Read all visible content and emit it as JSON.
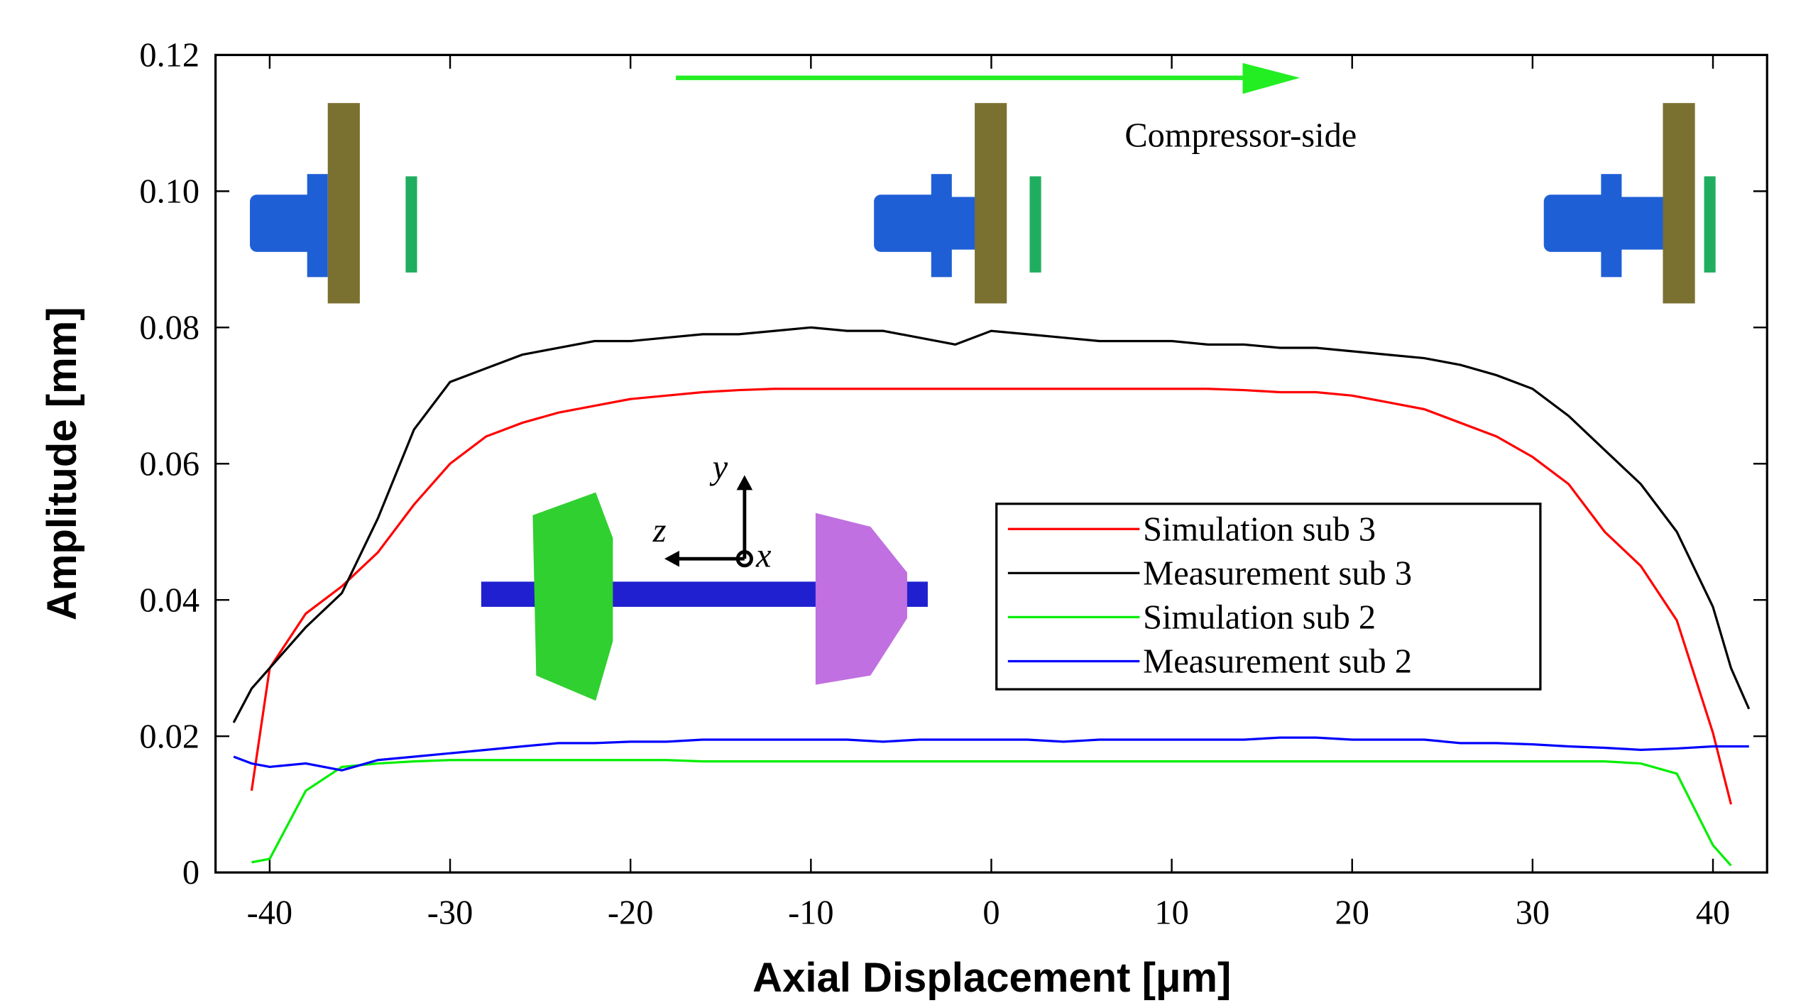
{
  "chart_data": {
    "type": "line",
    "xlabel": "Axial Displacement [μm]",
    "ylabel": "Amplitude [mm]",
    "annotations": [
      "Compressor-side",
      "y",
      "z",
      "x"
    ],
    "x": [
      -42,
      -41,
      -40,
      -38,
      -36,
      -34,
      -32,
      -30,
      -28,
      -26,
      -24,
      -22,
      -20,
      -18,
      -16,
      -14,
      -12,
      -10,
      -8,
      -6,
      -4,
      -2,
      0,
      2,
      4,
      6,
      8,
      10,
      12,
      14,
      16,
      18,
      20,
      22,
      24,
      26,
      28,
      30,
      32,
      34,
      36,
      38,
      40,
      41,
      42
    ],
    "series": [
      {
        "name": "Simulation sub 3",
        "color": "#ff0000",
        "values": [
          null,
          0.012,
          0.03,
          0.038,
          0.042,
          0.047,
          0.054,
          0.06,
          0.064,
          0.066,
          0.0675,
          0.0685,
          0.0695,
          0.07,
          0.0705,
          0.0708,
          0.071,
          0.071,
          0.071,
          0.071,
          0.071,
          0.071,
          0.071,
          0.071,
          0.071,
          0.071,
          0.071,
          0.071,
          0.071,
          0.0708,
          0.0705,
          0.0705,
          0.07,
          0.069,
          0.068,
          0.066,
          0.064,
          0.061,
          0.057,
          0.05,
          0.045,
          0.037,
          0.0205,
          0.01,
          null
        ]
      },
      {
        "name": "Measurement sub 3",
        "color": "#000000",
        "values": [
          0.022,
          0.027,
          0.03,
          0.036,
          0.041,
          0.052,
          0.065,
          0.072,
          0.074,
          0.076,
          0.077,
          0.078,
          0.078,
          0.0785,
          0.079,
          0.079,
          0.0795,
          0.08,
          0.0795,
          0.0795,
          0.0785,
          0.0775,
          0.0795,
          0.079,
          0.0785,
          0.078,
          0.078,
          0.078,
          0.0775,
          0.0775,
          0.077,
          0.077,
          0.0765,
          0.076,
          0.0755,
          0.0745,
          0.073,
          0.071,
          0.067,
          0.062,
          0.057,
          0.05,
          0.039,
          0.03,
          0.024
        ]
      },
      {
        "name": "Simulation sub 2",
        "color": "#00ee00",
        "values": [
          null,
          0.0015,
          0.002,
          0.012,
          0.0155,
          0.016,
          0.0163,
          0.0165,
          0.0165,
          0.0165,
          0.0165,
          0.0165,
          0.0165,
          0.0165,
          0.0163,
          0.0163,
          0.0163,
          0.0163,
          0.0163,
          0.0163,
          0.0163,
          0.0163,
          0.0163,
          0.0163,
          0.0163,
          0.0163,
          0.0163,
          0.0163,
          0.0163,
          0.0163,
          0.0163,
          0.0163,
          0.0163,
          0.0163,
          0.0163,
          0.0163,
          0.0163,
          0.0163,
          0.0163,
          0.0163,
          0.016,
          0.0145,
          0.004,
          0.001,
          null
        ]
      },
      {
        "name": "Measurement sub 2",
        "color": "#0000ff",
        "values": [
          0.017,
          0.016,
          0.0155,
          0.016,
          0.015,
          0.0165,
          0.017,
          0.0175,
          0.018,
          0.0185,
          0.019,
          0.019,
          0.0192,
          0.0192,
          0.0195,
          0.0195,
          0.0195,
          0.0195,
          0.0195,
          0.0192,
          0.0195,
          0.0195,
          0.0195,
          0.0195,
          0.0192,
          0.0195,
          0.0195,
          0.0195,
          0.0195,
          0.0195,
          0.0198,
          0.0198,
          0.0195,
          0.0195,
          0.0195,
          0.019,
          0.019,
          0.0188,
          0.0185,
          0.0183,
          0.018,
          0.0182,
          0.0185,
          0.0185,
          0.0185
        ]
      }
    ],
    "xlim": [
      -43,
      43
    ],
    "xticks": [
      -40,
      -30,
      -20,
      -10,
      0,
      10,
      20,
      30,
      40
    ],
    "ylim": [
      0,
      0.12
    ],
    "yticks": [
      0,
      {
        "value": 0.02,
        "label": "0.02"
      },
      {
        "value": 0.04,
        "label": "0.04"
      },
      {
        "value": 0.06,
        "label": "0.06"
      },
      {
        "value": 0.08,
        "label": "0.08"
      },
      {
        "value": 0.1,
        "label": "0.10"
      },
      0.12
    ],
    "legend": "right",
    "grid": false
  }
}
